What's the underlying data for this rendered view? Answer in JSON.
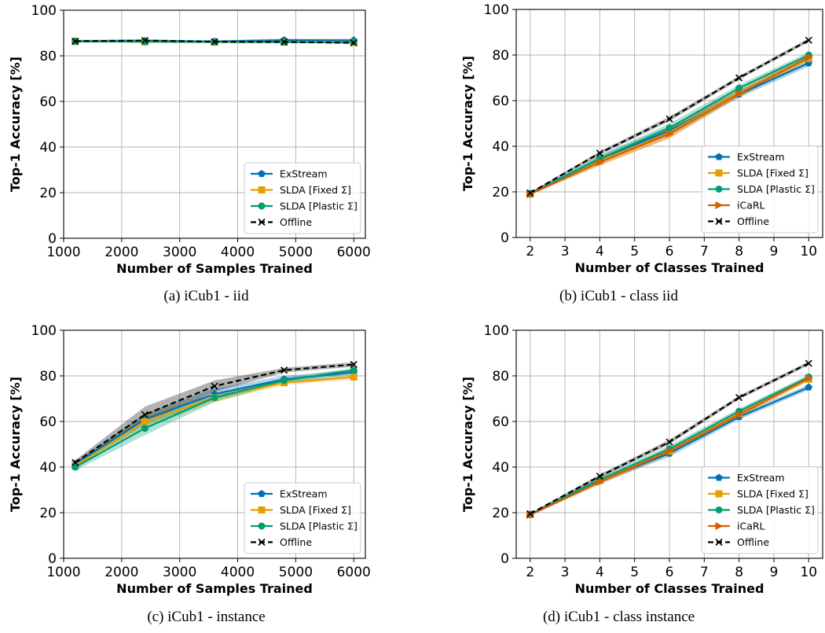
{
  "legend_markers": {
    "ExStream": "pentagon",
    "SLDA [Fixed Σ]": "square",
    "SLDA [Plastic Σ]": "circle",
    "iCaRL": "triangle-right",
    "Offline": "x"
  },
  "colors": {
    "ExStream": "#0072b2",
    "SLDA [Fixed Σ]": "#e69f00",
    "SLDA [Plastic Σ]": "#009e73",
    "iCaRL": "#d55e00",
    "Offline": "#000000",
    "grid": "#b0b0b0"
  },
  "chart_data": [
    {
      "type": "line",
      "caption": "(a) iCub1 - iid",
      "xlabel": "Number of Samples Trained",
      "ylabel": "Top-1 Accuracy [%]",
      "x": [
        1200,
        2400,
        3600,
        4800,
        6000
      ],
      "xticks": [
        "1000",
        "2000",
        "3000",
        "4000",
        "5000",
        "6000"
      ],
      "xtick_values": [
        1000,
        2000,
        3000,
        4000,
        5000,
        6000
      ],
      "xlim": [
        1000,
        6200
      ],
      "yticks": [
        "0",
        "20",
        "40",
        "60",
        "80",
        "100"
      ],
      "ylim": [
        0,
        100
      ],
      "grid": true,
      "legend": "lower-right",
      "series": [
        {
          "name": "ExStream",
          "values": [
            86.5,
            86.6,
            86.3,
            86.9,
            86.8
          ],
          "band": [
            0.6,
            0.6,
            0.6,
            0.6,
            0.6
          ]
        },
        {
          "name": "SLDA [Fixed Σ]",
          "values": [
            86.3,
            86.1,
            86.0,
            86.0,
            85.9
          ],
          "band": [
            0.3,
            0.3,
            0.3,
            0.3,
            0.3
          ]
        },
        {
          "name": "SLDA [Plastic Σ]",
          "values": [
            86.3,
            86.2,
            86.1,
            86.0,
            86.0
          ],
          "band": [
            0.3,
            0.3,
            0.3,
            0.3,
            0.3
          ]
        },
        {
          "name": "Offline",
          "values": [
            86.4,
            86.7,
            86.2,
            86.1,
            85.7
          ],
          "band": [
            0.4,
            0.4,
            0.4,
            0.4,
            0.4
          ],
          "dashed": true
        }
      ]
    },
    {
      "type": "line",
      "caption": "(b) iCub1 - class iid",
      "xlabel": "Number of Classes Trained",
      "ylabel": "Top-1 Accuracy [%]",
      "x": [
        2,
        4,
        6,
        8,
        10
      ],
      "xticks": [
        "2",
        "3",
        "4",
        "5",
        "6",
        "7",
        "8",
        "9",
        "10"
      ],
      "xtick_values": [
        2,
        3,
        4,
        5,
        6,
        7,
        8,
        9,
        10
      ],
      "xlim": [
        1.6,
        10.4
      ],
      "yticks": [
        "0",
        "20",
        "40",
        "60",
        "80",
        "100"
      ],
      "ylim": [
        0,
        100
      ],
      "grid": true,
      "legend": "lower-right",
      "series": [
        {
          "name": "ExStream",
          "values": [
            19.3,
            34.5,
            46.8,
            62.8,
            76.5
          ],
          "band": [
            0.3,
            1.5,
            2.0,
            1.5,
            1.5
          ]
        },
        {
          "name": "SLDA [Fixed Σ]",
          "values": [
            19.0,
            33.5,
            46.0,
            63.5,
            78.5
          ],
          "band": [
            0.3,
            1.8,
            2.5,
            1.5,
            1.2
          ]
        },
        {
          "name": "SLDA [Plastic Σ]",
          "values": [
            19.2,
            34.5,
            48.0,
            65.5,
            80.0
          ],
          "band": [
            0.3,
            1.5,
            2.0,
            1.5,
            1.2
          ]
        },
        {
          "name": "iCaRL",
          "values": [
            19.0,
            33.0,
            45.5,
            63.0,
            79.0
          ],
          "band": [
            0.3,
            1.5,
            2.0,
            1.5,
            1.2
          ]
        },
        {
          "name": "Offline",
          "values": [
            19.5,
            37.0,
            52.0,
            70.0,
            86.5
          ],
          "band": [
            0.3,
            0.8,
            1.0,
            0.8,
            0.8
          ],
          "dashed": true
        }
      ]
    },
    {
      "type": "line",
      "caption": "(c) iCub1 - instance",
      "xlabel": "Number of Samples Trained",
      "ylabel": "Top-1 Accuracy [%]",
      "x": [
        1200,
        2400,
        3600,
        4800,
        6000
      ],
      "xticks": [
        "1000",
        "2000",
        "3000",
        "4000",
        "5000",
        "6000"
      ],
      "xtick_values": [
        1000,
        2000,
        3000,
        4000,
        5000,
        6000
      ],
      "xlim": [
        1000,
        6200
      ],
      "yticks": [
        "0",
        "20",
        "40",
        "60",
        "80",
        "100"
      ],
      "ylim": [
        0,
        100
      ],
      "grid": true,
      "legend": "lower-right",
      "series": [
        {
          "name": "ExStream",
          "values": [
            41.5,
            61.0,
            72.0,
            78.5,
            81.5
          ],
          "band": [
            1.0,
            2.5,
            2.5,
            1.5,
            1.2
          ]
        },
        {
          "name": "SLDA [Fixed Σ]",
          "values": [
            40.5,
            60.0,
            70.5,
            77.0,
            79.5
          ],
          "band": [
            1.0,
            3.0,
            2.0,
            1.0,
            1.0
          ]
        },
        {
          "name": "SLDA [Plastic Σ]",
          "values": [
            40.0,
            57.0,
            70.5,
            78.0,
            82.5
          ],
          "band": [
            1.5,
            3.0,
            2.0,
            1.0,
            1.0
          ]
        },
        {
          "name": "Offline",
          "values": [
            42.0,
            63.0,
            75.5,
            82.5,
            85.0
          ],
          "band": [
            1.0,
            3.5,
            2.5,
            1.0,
            1.0
          ],
          "dashed": true
        }
      ]
    },
    {
      "type": "line",
      "caption": "(d) iCub1 - class instance",
      "xlabel": "Number of Classes Trained",
      "ylabel": "Top-1 Accuracy [%]",
      "x": [
        2,
        4,
        6,
        8,
        10
      ],
      "xticks": [
        "2",
        "3",
        "4",
        "5",
        "6",
        "7",
        "8",
        "9",
        "10"
      ],
      "xtick_values": [
        2,
        3,
        4,
        5,
        6,
        7,
        8,
        9,
        10
      ],
      "xlim": [
        1.6,
        10.4
      ],
      "yticks": [
        "0",
        "20",
        "40",
        "60",
        "80",
        "100"
      ],
      "ylim": [
        0,
        100
      ],
      "grid": true,
      "legend": "lower-right",
      "series": [
        {
          "name": "ExStream",
          "values": [
            19.3,
            34.0,
            46.0,
            62.0,
            75.0
          ],
          "band": [
            0.3,
            1.2,
            1.5,
            1.2,
            1.2
          ]
        },
        {
          "name": "SLDA [Fixed Σ]",
          "values": [
            19.2,
            34.0,
            47.0,
            63.5,
            78.5
          ],
          "band": [
            0.3,
            1.2,
            1.5,
            1.2,
            1.0
          ]
        },
        {
          "name": "SLDA [Plastic Σ]",
          "values": [
            19.2,
            34.5,
            48.0,
            64.5,
            79.5
          ],
          "band": [
            0.3,
            1.2,
            1.5,
            1.2,
            1.0
          ]
        },
        {
          "name": "iCaRL",
          "values": [
            19.0,
            33.5,
            47.0,
            63.0,
            79.0
          ],
          "band": [
            0.3,
            1.2,
            1.5,
            1.2,
            1.0
          ]
        },
        {
          "name": "Offline",
          "values": [
            19.5,
            36.0,
            51.0,
            70.5,
            85.5
          ],
          "band": [
            0.3,
            0.8,
            1.0,
            0.8,
            0.8
          ],
          "dashed": true
        }
      ]
    }
  ]
}
